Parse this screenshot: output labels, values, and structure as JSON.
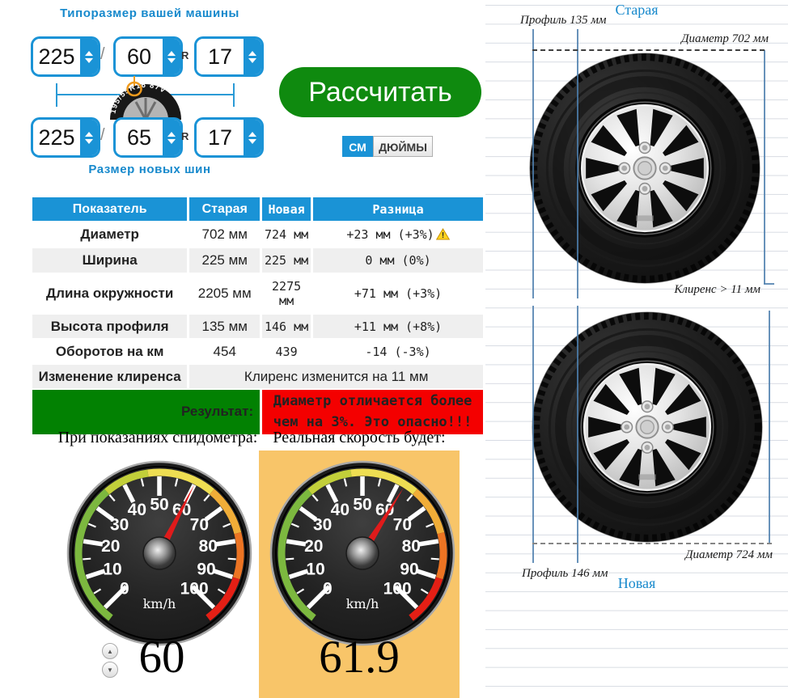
{
  "selectors": {
    "old_size_title": "Типоразмер вашей машины",
    "new_size_title": "Размер новых шин",
    "slash": "/",
    "r_label": "R",
    "old": {
      "width": "225",
      "profile": "60",
      "diameter": "17"
    },
    "new": {
      "width": "225",
      "profile": "65",
      "diameter": "17"
    },
    "tire_icon_text": "195/55R16 87V"
  },
  "calculate_button": "Рассчитать",
  "units_toggle": {
    "cm": "СМ",
    "inches": "ДЮЙМЫ",
    "selected": "СМ"
  },
  "table": {
    "headers": [
      "Показатель",
      "Старая",
      "Новая",
      "Разница"
    ],
    "rows": [
      {
        "name": "Диаметр",
        "old": "702 мм",
        "new": "724 мм",
        "diff": "+23 мм (+3%)",
        "warning": true
      },
      {
        "name": "Ширина",
        "old": "225 мм",
        "new": "225 мм",
        "diff": "0 мм (0%)",
        "warning": false
      },
      {
        "name": "Длина окружности",
        "old": "2205 мм",
        "new": "2275 мм",
        "diff": "+71 мм (+3%)",
        "warning": false
      },
      {
        "name": "Высота профиля",
        "old": "135 мм",
        "new": "146 мм",
        "diff": "+11 мм (+8%)",
        "warning": false
      },
      {
        "name": "Оборотов на км",
        "old": "454",
        "new": "439",
        "diff": "-14 (-3%)",
        "warning": false
      }
    ],
    "clearance": {
      "name": "Изменение клиренса",
      "value": "Клиренс изменится на 11 мм"
    },
    "result": {
      "label": "Результат:",
      "value": "Диаметр отличается более чем на 3%. Это опасно!!!"
    }
  },
  "speedometers": {
    "left_caption": "При показаниях спидометра:",
    "right_caption": "Реальная скорость будет:",
    "unit": "km/h",
    "scale_ticks": [
      0,
      10,
      20,
      30,
      40,
      50,
      60,
      70,
      80,
      90,
      100
    ],
    "indicated": "60",
    "real": "61.9"
  },
  "diagram": {
    "old_title": "Старая",
    "new_title": "Новая",
    "old_profile": "Профиль 135 мм",
    "old_diameter": "Диаметр 702 мм",
    "clearance": "Клиренс > 11 мм",
    "new_diameter": "Диаметр 724 мм",
    "new_profile": "Профиль 146 мм"
  },
  "icons": {
    "stepper_up": "▲",
    "stepper_down": "▼"
  },
  "colors": {
    "accent_blue": "#1a93d6",
    "measure_blue": "#4d7fae",
    "button_green": "#0f8a0f",
    "result_green": "#028102",
    "result_red": "#f40000",
    "orange_panel": "#f8c569",
    "warning_yellow": "#ffd21e"
  }
}
